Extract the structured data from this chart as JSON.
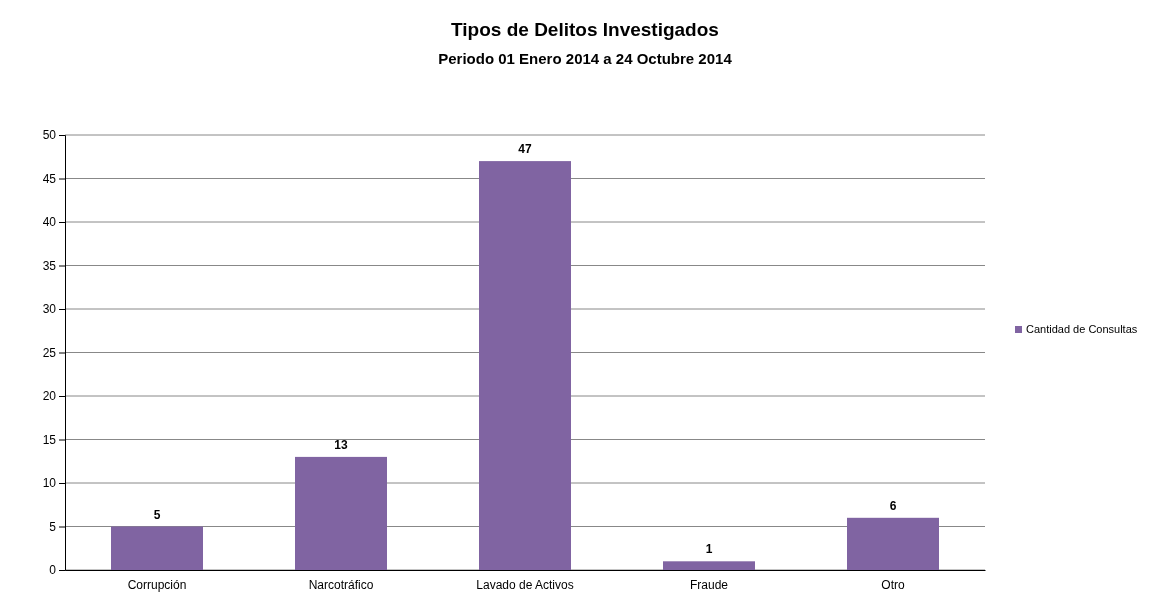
{
  "chart_data": {
    "type": "bar",
    "title": "Tipos de Delitos Investigados",
    "subtitle": "Periodo 01 Enero 2014 a 24 Octubre 2014",
    "categories": [
      "Corrupción",
      "Narcotráfico",
      "Lavado de Activos",
      "Fraude",
      "Otro"
    ],
    "series": [
      {
        "name": "Cantidad de Consultas",
        "color": "#8064a2",
        "values": [
          5,
          13,
          47,
          1,
          6
        ]
      }
    ],
    "ylim": [
      0,
      50
    ],
    "yticks": [
      0,
      5,
      10,
      15,
      20,
      25,
      30,
      35,
      40,
      45,
      50
    ],
    "grid": "y",
    "legend": "right",
    "data_labels": true
  }
}
